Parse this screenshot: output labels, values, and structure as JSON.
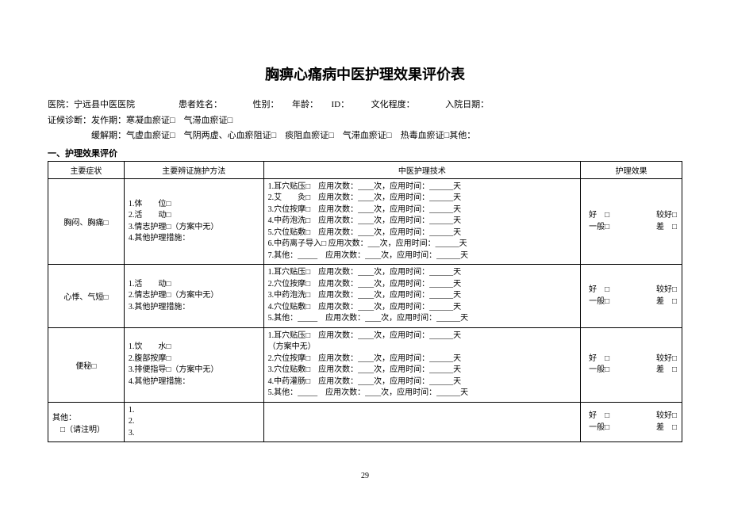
{
  "title": "胸痹心痛病中医护理效果评价表",
  "header": {
    "line1": "医院：宁远县中医医院　　　　　患者姓名：　　　　性别：　　年龄：　　ID：　　　文化程度：　　　　入院日期：",
    "line2": "证候诊断：发作期：寒凝血瘀证□　气滞血瘀证□",
    "line3": "　　　　　缓解期：气虚血瘀证□　气阴两虚、心血瘀阻证□　痰阻血瘀证□　气滞血瘀证□　热毒血瘀证□其他："
  },
  "section1": "一、护理效果评价",
  "table": {
    "headers": [
      "主要症状",
      "主要辨证施护方法",
      "中医护理技术",
      "护理效果"
    ],
    "rows": [
      {
        "symptom": "胸闷、胸痛□",
        "methods": "1.体　　位□\n2.活　　动□\n3.情志护理□（方案中无）\n4.其他护理措施：",
        "tech": [
          "1.耳穴贴压□　应用次数：____次，应用时间：______天",
          "2.艾　　灸□　应用次数：____次，应用时间：______天",
          "3.穴位按摩□　应用次数：____次，应用时间：______天",
          "4.中药泡洗□　应用次数：____次，应用时间：______天",
          "5.穴位贴敷□　应用次数：____次，应用时间：______天",
          "6.中药离子导入□ 应用次数：___次，应用时间：______天",
          "7.其他：_____　应用次数：____次，应用时间：______天"
        ],
        "effect": {
          "r1a": "好　□",
          "r1b": "较好□",
          "r2a": "一般□",
          "r2b": "差　□"
        }
      },
      {
        "symptom": "心悸、气短□",
        "methods": "1.活　　动□\n2.情志护理□（方案中无）\n3.其他护理措施：",
        "tech": [
          "1.耳穴贴压□　应用次数：____次，应用时间：______天",
          "2.穴位按摩□　应用次数：____次，应用时间：______天",
          "3.中药泡洗□　应用次数：____次，应用时间：______天",
          "4.穴位贴敷□　应用次数：____次，应用时间：______天",
          "5.其他：_____　应用次数：____次，应用时间：______天"
        ],
        "effect": {
          "r1a": "好　□",
          "r1b": "较好□",
          "r2a": "一般□",
          "r2b": "差　□"
        }
      },
      {
        "symptom": "便秘□",
        "methods": "1.饮　　水□\n2.腹部按摩□\n3.排便指导□（方案中无）\n4.其他护理措施：",
        "tech": [
          "1.耳穴贴压□　应用次数：____次，应用时间：______天",
          "（方案中无）",
          "2.穴位按摩□　应用次数：____次，应用时间：______天",
          "3.穴位贴敷□　应用次数：____次，应用时间：______天",
          "4.中药灌肠□　应用次数：____次，应用时间：______天",
          "5.其他：_____　应用次数：____次，应用时间：______天"
        ],
        "effect": {
          "r1a": "好　□",
          "r1b": "较好□",
          "r2a": "一般□",
          "r2b": "差　□"
        }
      },
      {
        "symptom": "其他：\n　□（请注明）",
        "methods": "1.\n2.\n3.",
        "tech": [],
        "effect": {
          "r1a": "好　□",
          "r1b": "较好□",
          "r2a": "一般□",
          "r2b": "差　□"
        }
      }
    ]
  },
  "pageNumber": "29"
}
